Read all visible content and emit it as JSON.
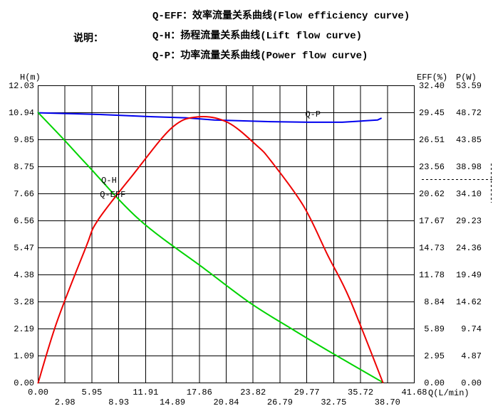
{
  "legend": {
    "label": "说明：",
    "items": [
      "Q-EFF：效率流量关系曲线(Flow efficiency curve)",
      "Q-H：扬程流量关系曲线(Lift flow curve)",
      "Q-P：功率流量关系曲线(Power flow curve)"
    ]
  },
  "chart_data": {
    "type": "line",
    "grid": true,
    "x_axis": {
      "unit": "Q(L/min)",
      "min": 0,
      "max": 41.68,
      "ticks": [
        "0.00",
        "2.98",
        "5.95",
        "8.93",
        "11.91",
        "14.89",
        "17.86",
        "20.84",
        "23.82",
        "26.79",
        "29.77",
        "32.75",
        "35.72",
        "38.70",
        "41.68"
      ]
    },
    "y_axis_left": {
      "unit": "H(m)",
      "min": 0,
      "max": 12.03,
      "ticks": [
        "12.03",
        "10.94",
        "9.85",
        "8.75",
        "7.66",
        "6.56",
        "5.47",
        "4.38",
        "3.28",
        "2.19",
        "1.09",
        "0.00"
      ]
    },
    "y_axis_right_eff": {
      "unit": "EFF(%)",
      "min": 0,
      "max": 32.4,
      "ticks": [
        "32.40",
        "29.45",
        "26.51",
        "23.56",
        "20.62",
        "17.67",
        "14.73",
        "11.78",
        "8.84",
        "5.89",
        "2.95",
        "0.00"
      ]
    },
    "y_axis_right_p": {
      "unit": "P(W)",
      "min": 0,
      "max": 53.59,
      "ticks": [
        "53.59",
        "48.72",
        "43.85",
        "38.98",
        "34.10",
        "29.23",
        "24.36",
        "19.49",
        "14.62",
        "9.74",
        "4.87",
        "0.00"
      ]
    },
    "series": [
      {
        "name": "Q-P",
        "axis": "P",
        "color": "#0000ee",
        "smooth": false,
        "points": [
          [
            0,
            48.7
          ],
          [
            6.8,
            48.4
          ],
          [
            12.6,
            48.0
          ],
          [
            16.3,
            47.8
          ],
          [
            19.5,
            47.4
          ],
          [
            25.8,
            47.1
          ],
          [
            30.0,
            47.0
          ],
          [
            33.7,
            47.0
          ],
          [
            37.6,
            47.4
          ],
          [
            38.0,
            47.7
          ]
        ]
      },
      {
        "name": "Q-H",
        "axis": "H",
        "color": "#00d300",
        "smooth": true,
        "points": [
          [
            0,
            10.94
          ],
          [
            2.9,
            9.83
          ],
          [
            5.5,
            8.8
          ],
          [
            11.3,
            6.58
          ],
          [
            18.5,
            4.6
          ],
          [
            23.6,
            3.21
          ],
          [
            28.0,
            2.21
          ],
          [
            32.1,
            1.31
          ],
          [
            38.2,
            0.02
          ]
        ]
      },
      {
        "name": "Q-EFF",
        "axis": "EFF",
        "color": "#ee0000",
        "smooth": true,
        "points": [
          [
            0,
            0
          ],
          [
            2.1,
            6.7
          ],
          [
            5.3,
            14.8
          ],
          [
            6.6,
            17.7
          ],
          [
            10.6,
            22.8
          ],
          [
            14.8,
            27.8
          ],
          [
            17.7,
            29.0
          ],
          [
            21.0,
            28.4
          ],
          [
            24.2,
            25.9
          ],
          [
            25.8,
            24.2
          ],
          [
            29.4,
            19.3
          ],
          [
            32.1,
            13.9
          ],
          [
            34.5,
            9.2
          ],
          [
            38.2,
            0.05
          ]
        ]
      }
    ],
    "curve_labels": [
      {
        "text": "Q-H",
        "axis": "H",
        "q": 7.0,
        "value": 8.16
      },
      {
        "text": "Q-EFF",
        "axis": "EFF",
        "q": 6.85,
        "value": 20.45
      },
      {
        "text": "Q-P",
        "axis": "P",
        "q": 29.6,
        "value": 48.35
      }
    ],
    "annotations": [
      {
        "name": "rated-point-dashed-marker",
        "location": "right margin between rows 34.10 and 38.98",
        "style": "dashed"
      }
    ]
  }
}
